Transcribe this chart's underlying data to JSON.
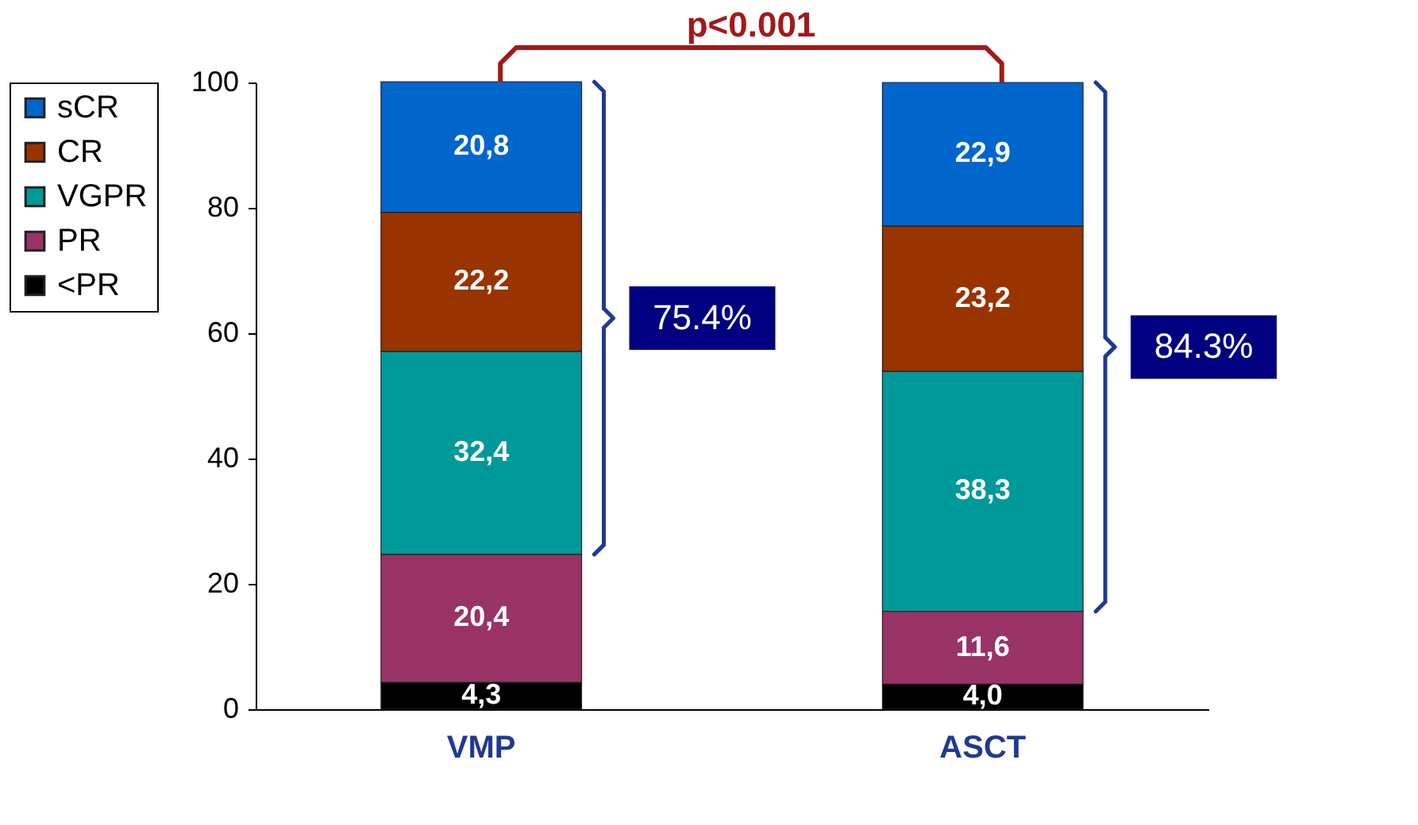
{
  "chart_data": {
    "type": "bar",
    "stacked": true,
    "categories": [
      "VMP",
      "ASCT"
    ],
    "series": [
      {
        "name": "<PR",
        "color": "#000000",
        "values": [
          4.3,
          4.0
        ],
        "value_labels": [
          "4,3",
          "4,0"
        ]
      },
      {
        "name": "PR",
        "color": "#993366",
        "values": [
          20.4,
          11.6
        ],
        "value_labels": [
          "20,4",
          "11,6"
        ]
      },
      {
        "name": "VGPR",
        "color": "#009999",
        "values": [
          32.4,
          38.3
        ],
        "value_labels": [
          "32,4",
          "38,3"
        ]
      },
      {
        "name": "CR",
        "color": "#993300",
        "values": [
          22.2,
          23.2
        ],
        "value_labels": [
          "22,2",
          "23,2"
        ]
      },
      {
        "name": "sCR",
        "color": "#0066cc",
        "values": [
          20.8,
          22.9
        ],
        "value_labels": [
          "20,8",
          "22,9"
        ]
      }
    ],
    "ylim": [
      0,
      100
    ],
    "yticks": [
      0,
      20,
      40,
      60,
      80,
      100
    ],
    "grid": false,
    "legend": "left",
    "annotations": [
      "p<0.001",
      "75.4%",
      "84.3%"
    ]
  }
}
